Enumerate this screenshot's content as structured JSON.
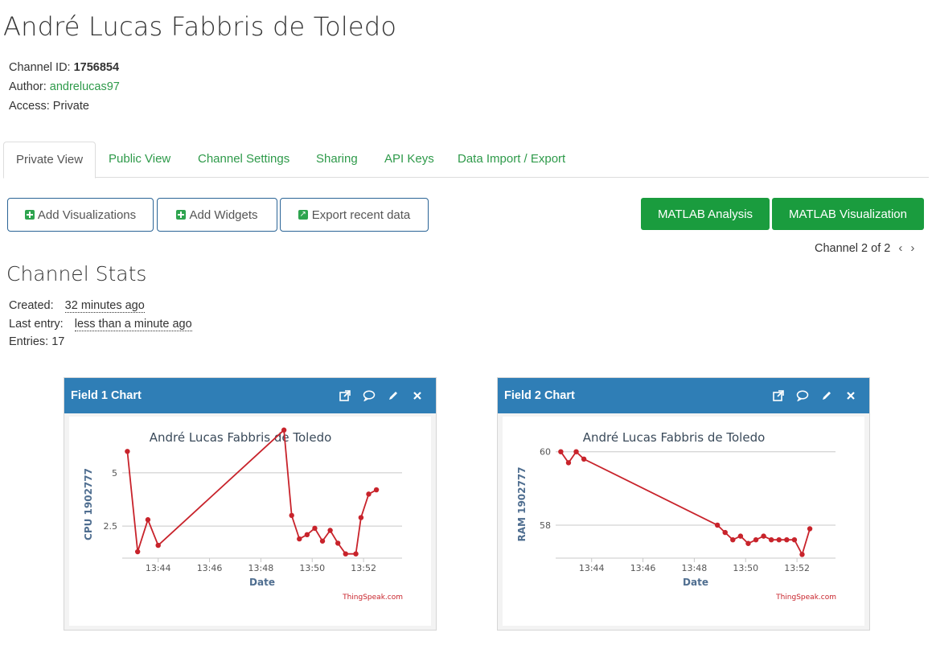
{
  "channel": {
    "title": "André Lucas Fabbris de Toledo",
    "id_label": "Channel ID:",
    "id_value": "1756854",
    "author_label": "Author:",
    "author_value": "andrelucas97",
    "access_label": "Access:",
    "access_value": "Private"
  },
  "tabs": [
    "Private View",
    "Public View",
    "Channel Settings",
    "Sharing",
    "API Keys",
    "Data Import / Export"
  ],
  "buttons": {
    "add_visualizations": "Add Visualizations",
    "add_widgets": "Add Widgets",
    "export_recent": "Export recent data",
    "matlab_analysis": "MATLAB Analysis",
    "matlab_visualization": "MATLAB Visualization"
  },
  "pager": {
    "label": "Channel 2 of 2",
    "prev": "‹",
    "next": "›"
  },
  "stats": {
    "title": "Channel Stats",
    "created_label": "Created:",
    "created_value": "32 minutes ago",
    "last_entry_label": "Last entry:",
    "last_entry_value": "less than a minute ago",
    "entries_label": "Entries:",
    "entries_value": "17"
  },
  "panels": [
    {
      "title": "Field 1 Chart"
    },
    {
      "title": "Field 2 Chart"
    }
  ],
  "colors": {
    "accent_green": "#2e9a4a",
    "panel_header": "#2f7eb6",
    "line": "#c8232b",
    "button_green": "#1a9c3e"
  },
  "icons": [
    "external-link-icon",
    "comment-icon",
    "pencil-icon",
    "close-icon",
    "plus-icon",
    "export-icon",
    "chevron-left-icon",
    "chevron-right-icon"
  ],
  "chart_data": [
    {
      "type": "line",
      "title": "André Lucas Fabbris de Toledo",
      "xlabel": "Date",
      "ylabel": "CPU 1902777",
      "credit": "ThingSpeak.com",
      "x_ticks": [
        "13:44",
        "13:46",
        "13:48",
        "13:50",
        "13:52"
      ],
      "x_tick_minutes": [
        44,
        46,
        48,
        50,
        52
      ],
      "y_ticks": [
        "2.5",
        "5"
      ],
      "y_tick_values": [
        2.5,
        5
      ],
      "xlim": [
        42.6,
        53.5
      ],
      "ylim": [
        1.0,
        6.5
      ],
      "x": [
        42.8,
        43.2,
        43.6,
        44.0,
        48.9,
        49.2,
        49.5,
        49.8,
        50.1,
        50.4,
        50.7,
        51.0,
        51.3,
        51.7,
        51.9,
        52.2,
        52.5
      ],
      "values": [
        6.0,
        1.3,
        2.8,
        1.6,
        7.0,
        3.0,
        1.9,
        2.1,
        2.4,
        1.8,
        2.3,
        1.7,
        1.2,
        1.2,
        2.9,
        4.0,
        4.2
      ]
    },
    {
      "type": "line",
      "title": "André Lucas Fabbris de Toledo",
      "xlabel": "Date",
      "ylabel": "RAM 1902777",
      "credit": "ThingSpeak.com",
      "x_ticks": [
        "13:44",
        "13:46",
        "13:48",
        "13:50",
        "13:52"
      ],
      "x_tick_minutes": [
        44,
        46,
        48,
        50,
        52
      ],
      "y_ticks": [
        "58",
        "60"
      ],
      "y_tick_values": [
        58,
        60
      ],
      "xlim": [
        42.6,
        53.5
      ],
      "ylim": [
        57.1,
        60.3
      ],
      "x": [
        42.8,
        43.1,
        43.4,
        43.7,
        48.9,
        49.2,
        49.5,
        49.8,
        50.1,
        50.4,
        50.7,
        51.0,
        51.3,
        51.6,
        51.9,
        52.2,
        52.5
      ],
      "values": [
        60.0,
        59.7,
        60.0,
        59.8,
        58.0,
        57.8,
        57.6,
        57.7,
        57.5,
        57.6,
        57.7,
        57.6,
        57.6,
        57.6,
        57.6,
        57.2,
        57.9
      ]
    }
  ]
}
